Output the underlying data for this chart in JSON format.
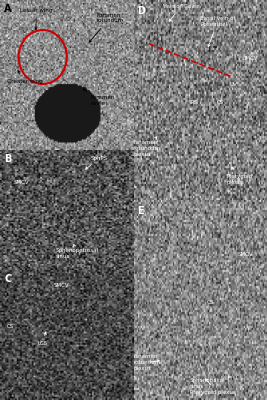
{
  "figure_bg": "#d0d0d0",
  "panel_bg_A": "#888888",
  "panel_bg_B": "#111111",
  "panel_bg_C": "#111111",
  "panel_bg_D": "#777777",
  "panel_bg_E": "#888888",
  "panel_labels": [
    "A",
    "B",
    "C",
    "D",
    "E"
  ],
  "label_color": "#ffffff",
  "label_color_A": "#000000",
  "annotation_color": "#000000",
  "annotation_color_white": "#ffffff",
  "circle_color": "#cc0000",
  "dashed_line_color": "#cc0000",
  "panels": {
    "A": {
      "labels": [
        "Lesser wing",
        "Foramen\nrotundum",
        "Greater wing",
        "Foramen\novale"
      ]
    },
    "B": {
      "labels": [
        "SphPS",
        "SMCV",
        "Sphenopetrosal\nsinus"
      ]
    },
    "C": {
      "labels": [
        "SMCV",
        "CS",
        "LCS"
      ]
    },
    "D": {
      "labels": [
        "Vein of Galen",
        "Basal vein of\nRosenthal",
        "SMCV",
        "UV",
        "IPS",
        "CS",
        "Foramen\nrotundum\nplexus",
        "Pterygoid\nplexus"
      ]
    },
    "E": {
      "labels": [
        "SMCV",
        "CS",
        "Foramen\nrotundum\nplexus",
        "Sphenobasal\nsinus\nPterygoid plexus"
      ]
    }
  }
}
